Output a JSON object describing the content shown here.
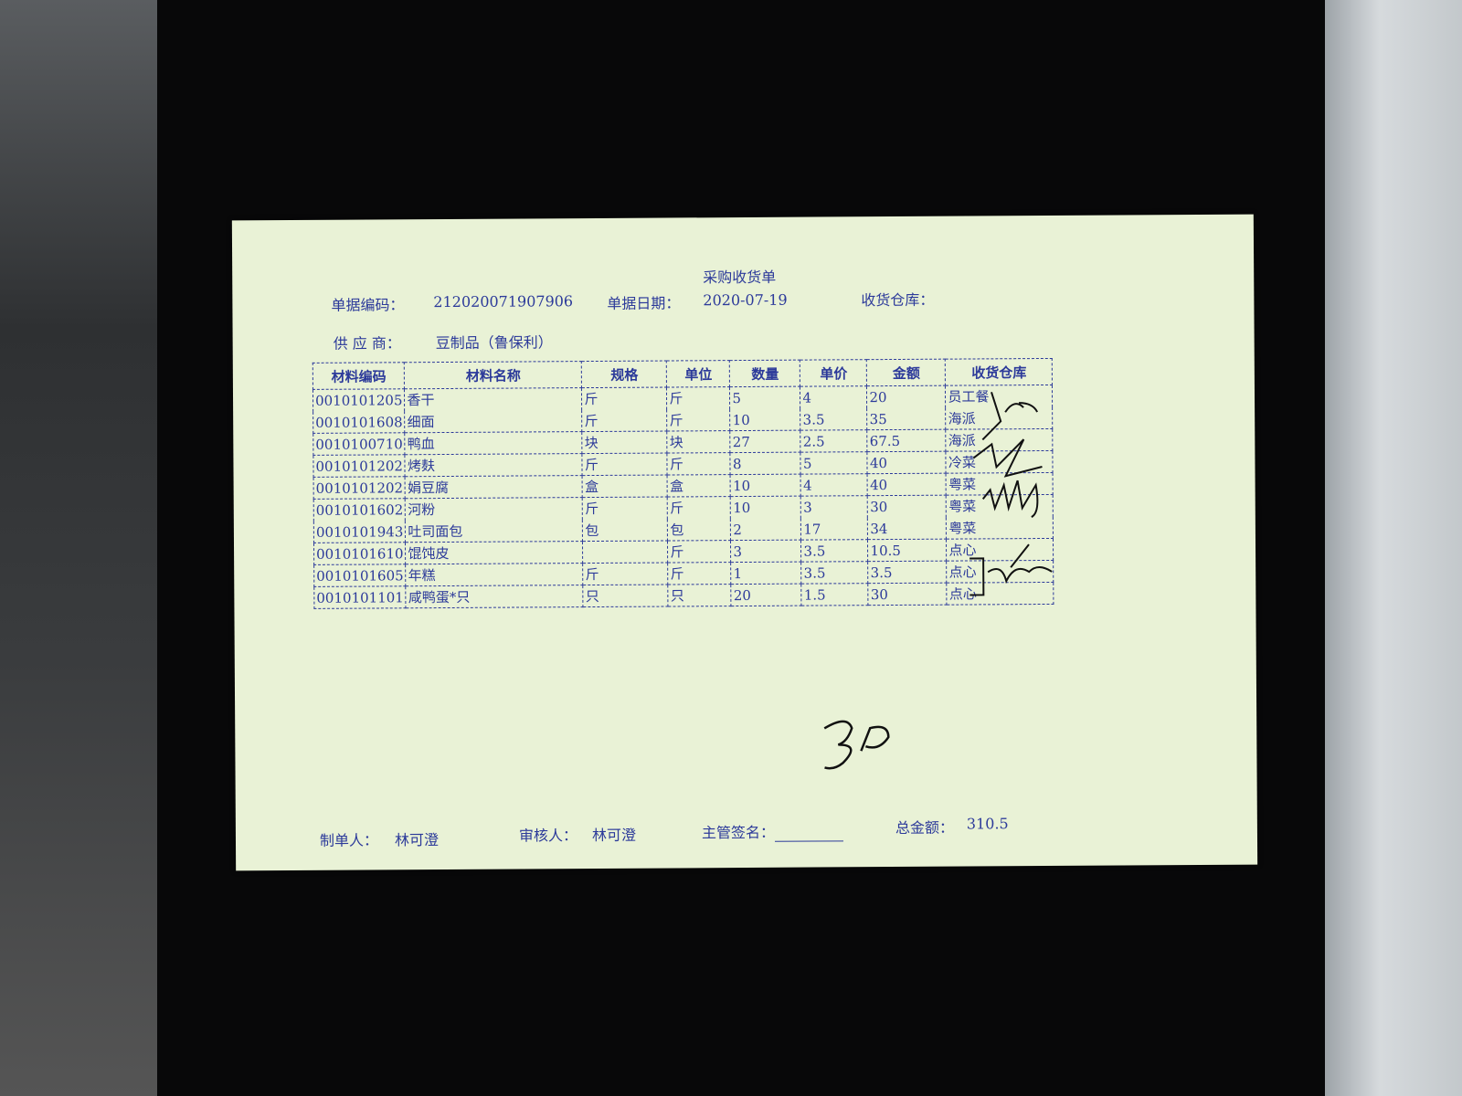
{
  "document": {
    "title": "采购收货单",
    "doc_no_label": "单据编码：",
    "doc_no": "212020071907906",
    "date_label": "单据日期：",
    "date": "2020-07-19",
    "warehouse_label": "收货仓库：",
    "supplier_label": "供 应 商：",
    "supplier": "豆制品（鲁保利）"
  },
  "table": {
    "headers": [
      "材料编码",
      "材料名称",
      "规格",
      "单位",
      "数量",
      "单价",
      "金额",
      "收货仓库"
    ],
    "rows": [
      [
        "0010101205",
        "香干",
        "斤",
        "斤",
        "5",
        "4",
        "20",
        "员工餐"
      ],
      [
        "0010101608",
        "细面",
        "斤",
        "斤",
        "10",
        "3.5",
        "35",
        "海派"
      ],
      [
        "0010100710",
        "鸭血",
        "块",
        "块",
        "27",
        "2.5",
        "67.5",
        "海派"
      ],
      [
        "0010101202",
        "烤麸",
        "斤",
        "斤",
        "8",
        "5",
        "40",
        "冷菜"
      ],
      [
        "0010101202",
        "娟豆腐",
        "盒",
        "盒",
        "10",
        "4",
        "40",
        "粤菜"
      ],
      [
        "0010101602",
        "河粉",
        "斤",
        "斤",
        "10",
        "3",
        "30",
        "粤菜"
      ],
      [
        "0010101943",
        "吐司面包",
        "包",
        "包",
        "2",
        "17",
        "34",
        "粤菜"
      ],
      [
        "0010101610",
        "馄饨皮",
        "",
        "斤",
        "3",
        "3.5",
        "10.5",
        "点心"
      ],
      [
        "0010101605",
        "年糕",
        "斤",
        "斤",
        "1",
        "3.5",
        "3.5",
        "点心"
      ],
      [
        "0010101101",
        "咸鸭蛋*只",
        "只",
        "只",
        "20",
        "1.5",
        "30",
        "点心"
      ]
    ]
  },
  "footer": {
    "maker_label": "制单人：",
    "maker": "林可澄",
    "reviewer_label": "审核人：",
    "reviewer": "林可澄",
    "supervisor_label": "主管签名：",
    "total_label": "总金额：",
    "total": "310.5"
  },
  "colors": {
    "ink": "#2c3a9a",
    "paper": "#e9f2d6",
    "background": "#0c0c0e"
  }
}
